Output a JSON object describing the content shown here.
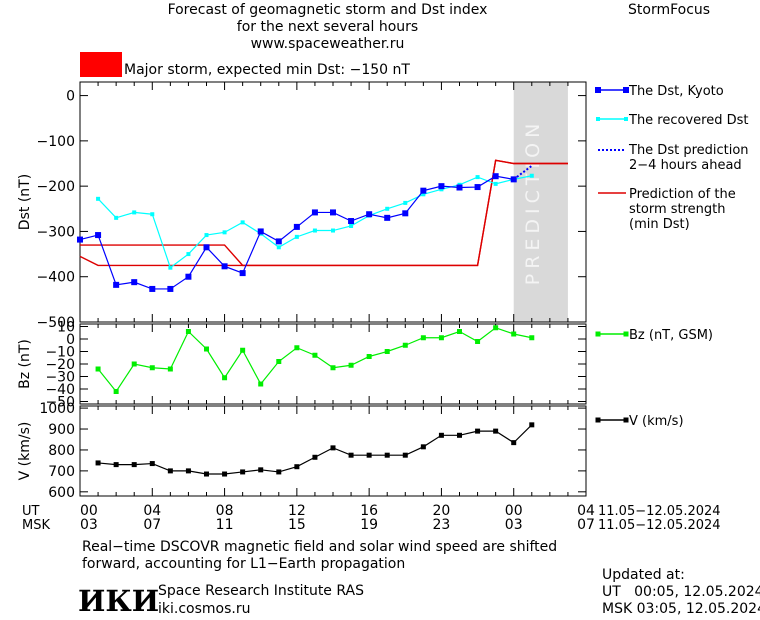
{
  "header": {
    "title_lines": [
      "Forecast of geomagnetic storm and Dst index",
      "for the next several hours",
      "www.spaceweather.ru"
    ],
    "brand": "StormFocus",
    "storm_label": "Major storm, expected min Dst: −150 nT",
    "storm_color": "#ff0000"
  },
  "prediction_text": "PREDICTION",
  "colors": {
    "dst_kyoto": "#0000ff",
    "dst_recovered": "#00ffff",
    "dst_prediction": "#0000ff",
    "storm_strength": "#dd0000",
    "bz": "#00ee00",
    "v": "#000000",
    "prediction_zone": "#d9d9d9"
  },
  "time_axis": {
    "ut_label": "UT",
    "msk_label": "MSK",
    "ut_ticks": [
      "00",
      "04",
      "08",
      "12",
      "16",
      "20",
      "00",
      "04"
    ],
    "msk_ticks": [
      "03",
      "07",
      "11",
      "15",
      "19",
      "23",
      "03",
      "07"
    ],
    "ut_dates": "11.05−12.05.2024",
    "msk_dates": "11.05−12.05.2024"
  },
  "footer": {
    "note_lines": [
      "Real−time DSCOVR magnetic field and solar wind speed are shifted",
      "forward, accounting for L1−Earth propagation"
    ],
    "logo_text": "ИКИ",
    "institute": "Space Research Institute RAS",
    "site": "iki.cosmos.ru",
    "updated_label": "Updated at:",
    "updated_ut": "UT   00:05, 12.05.2024",
    "updated_msk": "MSK 03:05, 12.05.2024"
  },
  "chart_data": [
    {
      "type": "line",
      "ylabel": "Dst (nT)",
      "ylim": [
        -500,
        30
      ],
      "yticks": [
        0,
        -100,
        -200,
        -300,
        -400,
        -500
      ],
      "x_unit": "hours since 00 UT 11.05.2024",
      "xlim": [
        0,
        28
      ],
      "prediction_region": [
        24,
        27
      ],
      "series": [
        {
          "name": "The Dst, Kyoto",
          "x": [
            0,
            1,
            2,
            3,
            4,
            5,
            6,
            7,
            8,
            9,
            10,
            11,
            12,
            13,
            14,
            15,
            16,
            17,
            18,
            19,
            20,
            21,
            22,
            23,
            24
          ],
          "y": [
            -318,
            -308,
            -418,
            -412,
            -427,
            -427,
            -400,
            -335,
            -377,
            -392,
            -300,
            -322,
            -290,
            -258,
            -258,
            -277,
            -262,
            -270,
            -260,
            -210,
            -200,
            -203,
            -202,
            -178,
            -185
          ]
        },
        {
          "name": "The recovered Dst",
          "x": [
            1,
            2,
            3,
            4,
            5,
            6,
            7,
            8,
            9,
            10,
            11,
            12,
            13,
            14,
            15,
            16,
            17,
            18,
            19,
            20,
            21,
            22,
            23,
            24,
            25
          ],
          "y": [
            -228,
            -270,
            -258,
            -262,
            -380,
            -350,
            -308,
            -302,
            -280,
            -305,
            -335,
            -312,
            -298,
            -298,
            -288,
            -265,
            -250,
            -237,
            -218,
            -207,
            -197,
            -180,
            -195,
            -185,
            -177
          ]
        },
        {
          "name": "The Dst prediction\n2−4 hours ahead",
          "x": [
            24,
            25
          ],
          "y": [
            -185,
            -155
          ]
        },
        {
          "name": "Prediction of the\nstorm strength\n(min Dst)",
          "x": [
            0,
            1,
            2,
            3,
            4,
            5,
            6,
            7,
            8,
            9,
            10,
            11,
            12,
            13,
            14,
            15,
            16,
            17,
            18,
            19,
            20,
            21,
            22,
            23,
            24,
            25,
            26,
            27
          ],
          "y": [
            -330,
            -330,
            -330,
            -330,
            -330,
            -330,
            -330,
            -330,
            -330,
            -375,
            -375,
            -375,
            -375,
            -375,
            -375,
            -375,
            -375,
            -375,
            -375,
            -375,
            -375,
            -375,
            -375,
            -143,
            -150,
            -150,
            -150,
            -150
          ]
        },
        {
          "name": "",
          "x": [
            0,
            1,
            2,
            3,
            4,
            5,
            6,
            7,
            8,
            9,
            10,
            11,
            12,
            13,
            14,
            15,
            16,
            17,
            18,
            19,
            20,
            21,
            22,
            23,
            24,
            25,
            26,
            27
          ],
          "y": [
            -355,
            -375,
            -375,
            -375,
            -375,
            -375,
            -375,
            -375,
            -375,
            -375,
            -375,
            -375,
            -375,
            -375,
            -375,
            -375,
            -375,
            -375,
            -375,
            -375,
            -375,
            -375,
            -375,
            -143,
            -150,
            -150,
            -150,
            -150
          ]
        }
      ]
    },
    {
      "type": "line",
      "ylabel": "Bz (nT)",
      "ylim": [
        -52,
        12
      ],
      "yticks": [
        10,
        0,
        -10,
        -20,
        -30,
        -40,
        -50
      ],
      "series": [
        {
          "name": "Bz (nT, GSM)",
          "x": [
            1,
            2,
            3,
            4,
            5,
            6,
            7,
            8,
            9,
            10,
            11,
            12,
            13,
            14,
            15,
            16,
            17,
            18,
            19,
            20,
            21,
            22,
            23,
            24,
            25
          ],
          "y": [
            -24,
            -42,
            -20,
            -23,
            -24,
            6,
            -8,
            -31,
            -9,
            -36,
            -18,
            -7,
            -13,
            -23,
            -21,
            -14,
            -10,
            -5,
            1,
            1,
            6,
            -2,
            9,
            4,
            1
          ]
        }
      ]
    },
    {
      "type": "line",
      "ylabel": "V (km/s)",
      "ylim": [
        580,
        1010
      ],
      "yticks": [
        1000,
        900,
        800,
        700,
        600
      ],
      "series": [
        {
          "name": "V (km/s)",
          "x": [
            1,
            2,
            3,
            4,
            5,
            6,
            7,
            8,
            9,
            10,
            11,
            12,
            13,
            14,
            15,
            16,
            17,
            18,
            19,
            20,
            21,
            22,
            23,
            24,
            25
          ],
          "y": [
            738,
            730,
            730,
            735,
            700,
            700,
            685,
            685,
            695,
            705,
            695,
            720,
            765,
            810,
            775,
            775,
            775,
            775,
            815,
            870,
            870,
            890,
            890,
            835,
            920
          ]
        }
      ]
    }
  ]
}
